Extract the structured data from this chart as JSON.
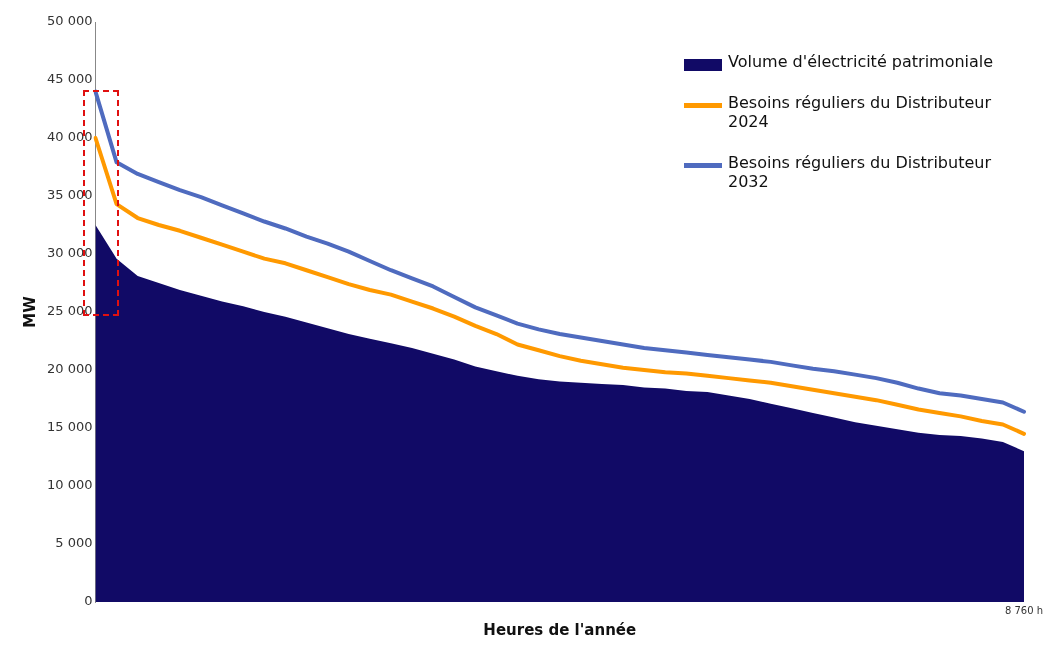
{
  "chart_data": {
    "type": "line",
    "xlabel": "Heures de l'année",
    "ylabel": "MW",
    "categories": [
      null,
      null,
      null,
      null,
      null,
      null,
      null,
      null,
      null,
      null,
      null,
      null,
      null,
      null,
      null,
      null,
      null,
      null,
      null,
      null,
      null,
      null,
      null,
      null,
      null,
      null,
      null,
      null,
      null,
      null,
      null,
      null,
      null,
      null,
      null,
      null,
      null,
      null,
      null,
      null,
      null,
      null,
      null,
      null,
      "8 760 h"
    ],
    "series": [
      {
        "name": "Volume d'électricité patrimoniale",
        "type": "area",
        "color": "#110a66",
        "values": [
          32500,
          29600,
          28100,
          27500,
          26900,
          26400,
          25900,
          25500,
          25000,
          24600,
          24100,
          23600,
          23100,
          22700,
          22300,
          21900,
          21400,
          20900,
          20300,
          19900,
          19500,
          19200,
          19000,
          18900,
          18800,
          18700,
          18500,
          18400,
          18200,
          18100,
          17800,
          17500,
          17100,
          16700,
          16300,
          15900,
          15500,
          15200,
          14900,
          14600,
          14400,
          14300,
          14100,
          13800,
          13000
        ]
      },
      {
        "name": "Besoins réguliers du Distributeur 2024",
        "type": "line",
        "color": "#ff9900",
        "values": [
          40000,
          34300,
          33100,
          32500,
          32000,
          31400,
          30800,
          30200,
          29600,
          29200,
          28600,
          28000,
          27400,
          26900,
          26500,
          25900,
          25300,
          24600,
          23800,
          23100,
          22200,
          21700,
          21200,
          20800,
          20500,
          20200,
          20000,
          19800,
          19700,
          19500,
          19300,
          19100,
          18900,
          18600,
          18300,
          18000,
          17700,
          17400,
          17000,
          16600,
          16300,
          16000,
          15600,
          15300,
          14500
        ]
      },
      {
        "name": "Besoins réguliers du Distributeur 2032",
        "type": "line",
        "color": "#4f6bbf",
        "values": [
          44000,
          37900,
          36900,
          36200,
          35500,
          34900,
          34200,
          33500,
          32800,
          32200,
          31500,
          30900,
          30200,
          29400,
          28600,
          27900,
          27200,
          26300,
          25400,
          24700,
          24000,
          23500,
          23100,
          22800,
          22500,
          22200,
          21900,
          21700,
          21500,
          21300,
          21100,
          20900,
          20700,
          20400,
          20100,
          19900,
          19600,
          19300,
          18900,
          18400,
          18000,
          17800,
          17500,
          17200,
          16400
        ]
      }
    ],
    "ylim": [
      0,
      50000
    ],
    "yticks": [
      {
        "value": 0,
        "label": "0"
      },
      {
        "value": 5000,
        "label": "5 000"
      },
      {
        "value": 10000,
        "label": "10 000"
      },
      {
        "value": 15000,
        "label": "15 000"
      },
      {
        "value": 20000,
        "label": "20 000"
      },
      {
        "value": 25000,
        "label": "25 000"
      },
      {
        "value": 30000,
        "label": "30 000"
      },
      {
        "value": 35000,
        "label": "35 000"
      },
      {
        "value": 40000,
        "label": "40 000"
      },
      {
        "value": 45000,
        "label": "45 000"
      },
      {
        "value": 50000,
        "label": "50 000"
      }
    ],
    "grid": false,
    "legend": "top right",
    "marker": "none",
    "line_style": "solid"
  }
}
